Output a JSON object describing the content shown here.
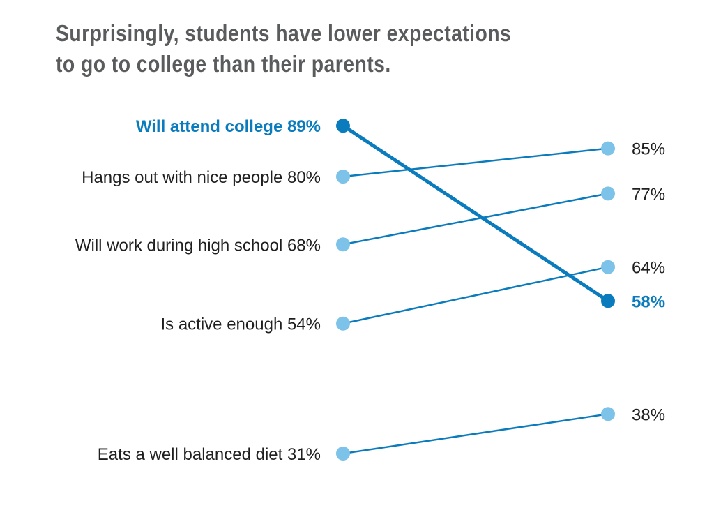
{
  "title": {
    "line1": "Surprisingly, students have lower expectations",
    "line2": "to go to college than their parents."
  },
  "colors": {
    "highlight": "#0a7bbd",
    "line": "#0a7bbd",
    "dot": "#7dc2e8",
    "text": "#1f1f1f",
    "title": "#5a5b5d"
  },
  "chart_data": {
    "type": "slope",
    "title": "Surprisingly, students have lower expectations to go to college than their parents.",
    "series": [
      {
        "label": "Will attend college",
        "left": 89,
        "right": 58,
        "highlight": true,
        "left_text": "Will attend college 89%",
        "right_text": "58%"
      },
      {
        "label": "Hangs out with nice people",
        "left": 80,
        "right": 85,
        "highlight": false,
        "left_text": "Hangs out with nice people 80%",
        "right_text": "85%"
      },
      {
        "label": "Will work during high school",
        "left": 68,
        "right": 77,
        "highlight": false,
        "left_text": "Will work during high school 68%",
        "right_text": "77%"
      },
      {
        "label": "Is active enough",
        "left": 54,
        "right": 64,
        "highlight": false,
        "left_text": "Is active enough 54%",
        "right_text": "64%"
      },
      {
        "label": "Eats a well balanced diet",
        "left": 31,
        "right": 38,
        "highlight": false,
        "left_text": "Eats a well balanced diet 31%",
        "right_text": "38%"
      }
    ]
  }
}
